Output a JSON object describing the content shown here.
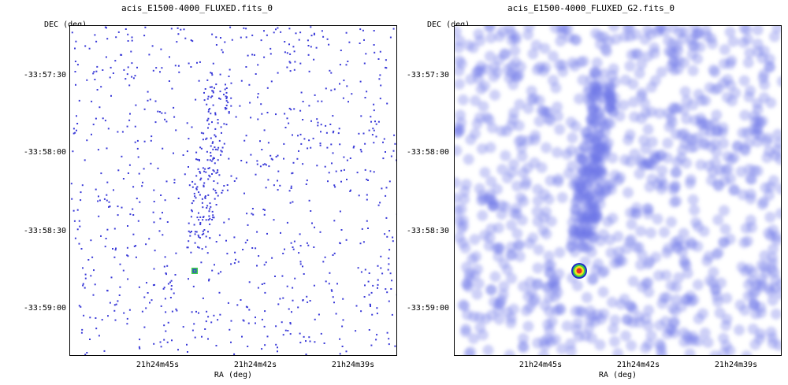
{
  "panels": [
    {
      "title": "acis_E1500-4000_FLUXED.fits_0",
      "dec_label": "DEC (deg)",
      "ra_label": "RA (deg)",
      "y_ticks": [
        "-33:57:30",
        "-33:58:00",
        "-33:58:30",
        "-33:59:00"
      ],
      "x_ticks": [
        "21h24m45s",
        "21h24m42s",
        "21h24m39s"
      ],
      "style": "raw"
    },
    {
      "title": "acis_E1500-4000_FLUXED_G2.fits_0",
      "dec_label": "DEC (deg)",
      "ra_label": "RA (deg)",
      "y_ticks": [
        "-33:57:30",
        "-33:58:00",
        "-33:58:30",
        "-33:59:00"
      ],
      "x_ticks": [
        "21h24m45s",
        "21h24m42s",
        "21h24m39s"
      ],
      "style": "smoothed"
    }
  ],
  "colors": {
    "event_blue": "#3a3ad8",
    "smooth_blue": "#6b72e6",
    "source_red": "#e8282c",
    "source_yellow": "#f2e21a",
    "source_green": "#3ccf4a"
  }
}
